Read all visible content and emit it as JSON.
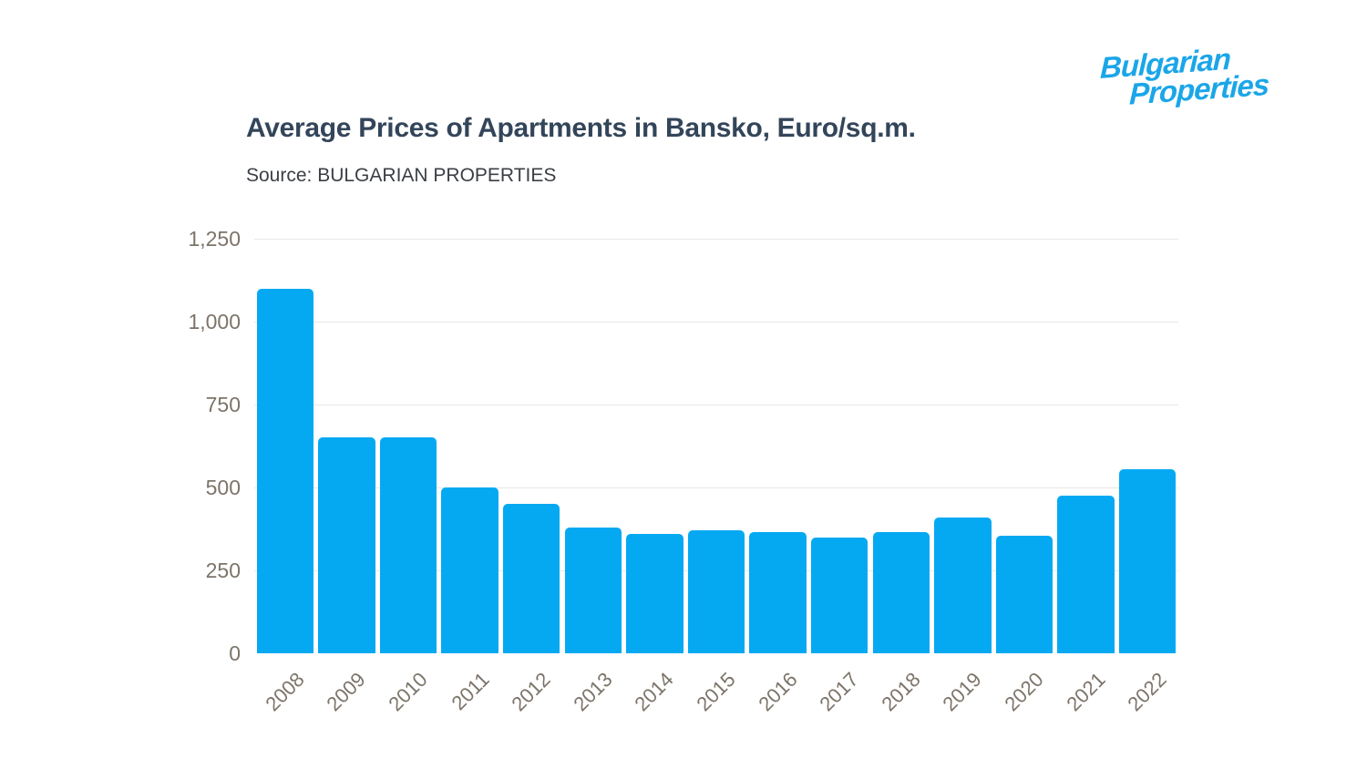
{
  "logo": {
    "line1": "Bulgarian",
    "line2": "Properties",
    "color": "#1BA6E8"
  },
  "header": {
    "title": "Average Prices of Apartments in Bansko, Euro/sq.m.",
    "source": "Source: BULGARIAN PROPERTIES"
  },
  "chart_data": {
    "type": "bar",
    "title": "Average Prices of Apartments in Bansko, Euro/sq.m.",
    "source": "Source: BULGARIAN PROPERTIES",
    "categories": [
      "2008",
      "2009",
      "2010",
      "2011",
      "2012",
      "2013",
      "2014",
      "2015",
      "2016",
      "2017",
      "2018",
      "2019",
      "2020",
      "2021",
      "2022"
    ],
    "values": [
      1100,
      650,
      650,
      500,
      450,
      380,
      360,
      370,
      365,
      350,
      365,
      410,
      355,
      475,
      555
    ],
    "xlabel": "",
    "ylabel": "",
    "ylim": [
      0,
      1250
    ],
    "yticks": [
      0,
      250,
      500,
      750,
      1000,
      1250
    ],
    "ytick_labels": [
      "0",
      "250",
      "500",
      "750",
      "1,000",
      "1,250"
    ],
    "bar_color": "#05A9F2",
    "grid": true,
    "gridline_color": "#E7E7E5",
    "legend": "none"
  }
}
